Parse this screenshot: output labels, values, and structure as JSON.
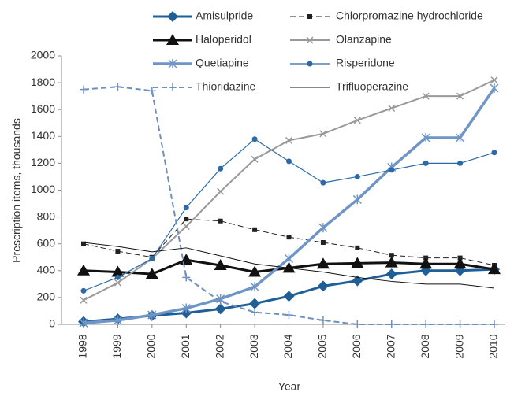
{
  "chart_data": {
    "type": "line",
    "x_label": "Year",
    "y_label": "Prescription items, thousands",
    "categories": [
      "1998",
      "1999",
      "2000",
      "2001",
      "2002",
      "2003",
      "2004",
      "2005",
      "2006",
      "2007",
      "2008",
      "2009",
      "2010"
    ],
    "ylim": [
      0,
      2000
    ],
    "yticks": [
      0,
      200,
      400,
      600,
      800,
      1000,
      1200,
      1400,
      1600,
      1800,
      2000
    ],
    "grid": false,
    "series": [
      {
        "name": "Amisulpride",
        "color": "#1f5f96",
        "marker": "diamond",
        "line_style": "solid",
        "line_width": 3,
        "values": [
          20,
          40,
          65,
          85,
          115,
          155,
          210,
          285,
          325,
          375,
          400,
          400,
          410
        ]
      },
      {
        "name": "Chlorpromazine hydrochloride",
        "color": "#222222",
        "marker": "square",
        "line_style": "dashed",
        "line_width": 1,
        "values": [
          600,
          545,
          500,
          785,
          770,
          705,
          650,
          610,
          570,
          515,
          495,
          495,
          440
        ]
      },
      {
        "name": "Haloperidol",
        "color": "#111111",
        "marker": "triangle",
        "line_style": "solid",
        "line_width": 3,
        "values": [
          400,
          390,
          375,
          480,
          440,
          390,
          420,
          450,
          455,
          460,
          450,
          450,
          410
        ]
      },
      {
        "name": "Olanzapine",
        "color": "#999999",
        "marker": "x",
        "line_style": "solid",
        "line_width": 2,
        "values": [
          180,
          310,
          490,
          730,
          990,
          1230,
          1370,
          1420,
          1520,
          1610,
          1700,
          1700,
          1820
        ]
      },
      {
        "name": "Quetiapine",
        "color": "#6f95c6",
        "marker": "asterisk",
        "line_style": "solid",
        "line_width": 3.5,
        "values": [
          10,
          30,
          70,
          120,
          190,
          280,
          490,
          720,
          930,
          1170,
          1390,
          1390,
          1760
        ]
      },
      {
        "name": "Risperidone",
        "color": "#2b6aa6",
        "marker": "circle",
        "line_style": "solid",
        "line_width": 1.2,
        "values": [
          250,
          350,
          490,
          870,
          1160,
          1380,
          1215,
          1055,
          1100,
          1150,
          1200,
          1200,
          1280
        ]
      },
      {
        "name": "Thioridazine",
        "color": "#6f8fc0",
        "marker": "plus",
        "line_style": "dashed",
        "line_width": 2,
        "values": [
          1750,
          1770,
          1740,
          350,
          170,
          90,
          70,
          30,
          0,
          0,
          0,
          0,
          0
        ]
      },
      {
        "name": "Trifluoperazine",
        "color": "#111111",
        "marker": "none",
        "line_style": "solid",
        "line_width": 1,
        "values": [
          610,
          580,
          540,
          570,
          510,
          450,
          420,
          390,
          350,
          320,
          300,
          300,
          270
        ]
      }
    ]
  }
}
